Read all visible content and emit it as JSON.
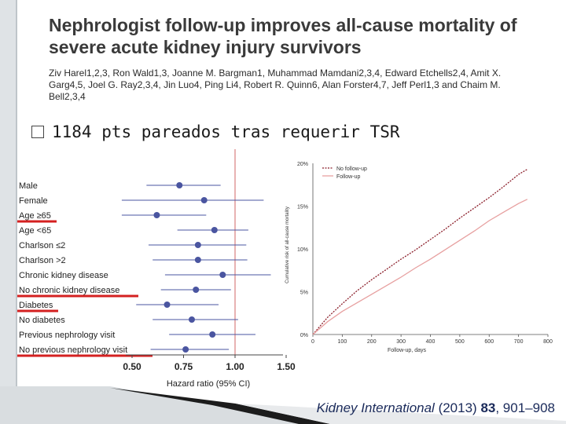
{
  "slide": {
    "title": "Nephrologist follow-up improves all-cause mortality of severe acute kidney injury survivors",
    "authors": "Ziv Harel1,2,3, Ron Wald1,3, Joanne M. Bargman1, Muhammad Mamdani2,3,4, Edward Etchells2,4, Amit X. Garg4,5, Joel G. Ray2,3,4, Jin Luo4, Ping Li4, Robert R. Quinn6, Alan Forster4,7, Jeff Perl1,3 and Chaim M. Bell2,3,4",
    "bullet": "1184 pts pareados tras requerir TSR",
    "citation": {
      "journal": "Kidney International",
      "year": " (2013) ",
      "volume": "83",
      "pages": ", 901–908"
    }
  },
  "chart_data": [
    {
      "type": "forest",
      "categories": [
        "Male",
        "Female",
        "Age ≥65",
        "Age <65",
        "Charlson ≤2",
        "Charlson >2",
        "Chronic kidney disease",
        "No chronic kidney disease",
        "Diabetes",
        "No diabetes",
        "Previous nephrology visit",
        "No previous nephrology visit"
      ],
      "point": [
        0.73,
        0.85,
        0.62,
        0.9,
        0.82,
        0.82,
        0.94,
        0.81,
        0.67,
        0.79,
        0.89,
        0.76
      ],
      "lower": [
        0.57,
        0.45,
        0.45,
        0.72,
        0.58,
        0.6,
        0.66,
        0.64,
        0.52,
        0.6,
        0.68,
        0.59
      ],
      "upper": [
        0.93,
        1.28,
        0.86,
        1.13,
        1.11,
        1.12,
        1.35,
        0.98,
        0.92,
        1.03,
        1.2,
        0.97
      ],
      "underlined": [
        false,
        false,
        true,
        false,
        false,
        false,
        false,
        true,
        true,
        false,
        false,
        true
      ],
      "xticks": [
        "0.50",
        "0.75",
        "1.00",
        "1.50"
      ],
      "xlabel": "Hazard ratio (95% CI)",
      "reference_line": 1.0,
      "colors": {
        "marker": "#4a55a0",
        "ci": "#4a55a0",
        "ref": "#d88080",
        "underline": "#d42020"
      }
    },
    {
      "type": "line",
      "xlabel": "Follow-up, days",
      "ylabel": "Cumulative risk of all-cause mortality",
      "xticks": [
        0,
        100,
        200,
        300,
        400,
        500,
        600,
        700,
        800
      ],
      "yticks": [
        "0%",
        "5%",
        "10%",
        "15%",
        "20%"
      ],
      "xlim": [
        0,
        800
      ],
      "ylim": [
        0,
        20
      ],
      "legend": "top-left",
      "series": [
        {
          "name": "No follow-up",
          "style": "dashed",
          "color": "#8b1e2a",
          "x": [
            0,
            50,
            100,
            150,
            200,
            250,
            300,
            350,
            400,
            450,
            500,
            550,
            600,
            650,
            700,
            730
          ],
          "y": [
            0,
            2.0,
            3.6,
            5.1,
            6.4,
            7.6,
            8.8,
            9.9,
            11.1,
            12.3,
            13.6,
            14.8,
            16.0,
            17.3,
            18.7,
            19.3
          ]
        },
        {
          "name": "Follow-up",
          "style": "solid",
          "color": "#e7a0a0",
          "x": [
            0,
            50,
            100,
            150,
            200,
            250,
            300,
            350,
            400,
            450,
            500,
            550,
            600,
            650,
            700,
            730
          ],
          "y": [
            0,
            1.5,
            2.7,
            3.7,
            4.7,
            5.7,
            6.7,
            7.8,
            8.8,
            9.9,
            11.0,
            12.1,
            13.3,
            14.3,
            15.3,
            15.8
          ]
        }
      ]
    }
  ]
}
